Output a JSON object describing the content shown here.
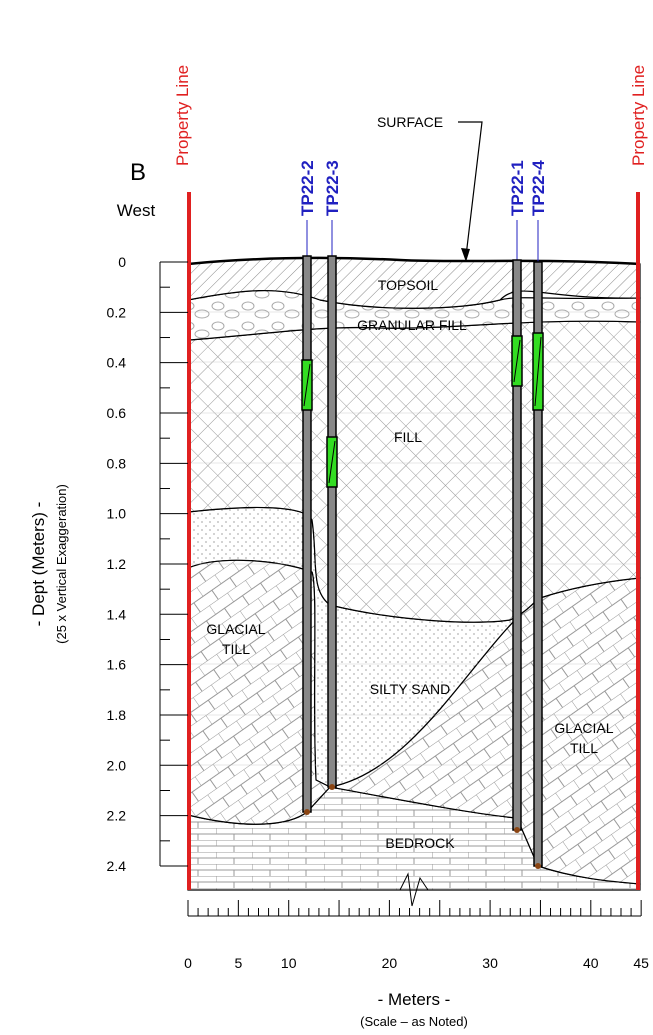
{
  "header": {
    "section": "B",
    "direction": "West",
    "property_line_left": "Property Line",
    "property_line_right": "Property Line"
  },
  "surface_label": "SURFACE",
  "boreholes": [
    {
      "label": "TP22-2"
    },
    {
      "label": "TP22-3"
    },
    {
      "label": "TP22-1"
    },
    {
      "label": "TP22-4"
    }
  ],
  "layers": {
    "topsoil": "TOPSOIL",
    "granular_fill": "GRANULAR FILL",
    "fill": "FILL",
    "glacial_till_left": [
      "GLACIAL",
      "TILL"
    ],
    "silty_sand": "SILTY SAND",
    "glacial_till_right": [
      "GLACIAL",
      "TILL"
    ],
    "bedrock": "BEDROCK"
  },
  "y_axis": {
    "title": "- Dept (Meters) -",
    "subtitle": "(25 x Vertical Exaggeration)",
    "ticks": [
      "0",
      "0.2",
      "0.4",
      "0.6",
      "0.8",
      "1.0",
      "1.2",
      "1.4",
      "1.6",
      "1.8",
      "2.0",
      "2.2",
      "2.4"
    ]
  },
  "x_axis": {
    "title": "- Meters -",
    "subtitle": "(Scale – as Noted)",
    "ticks": [
      "0",
      "5",
      "10",
      "20",
      "30",
      "40",
      "45"
    ]
  }
}
